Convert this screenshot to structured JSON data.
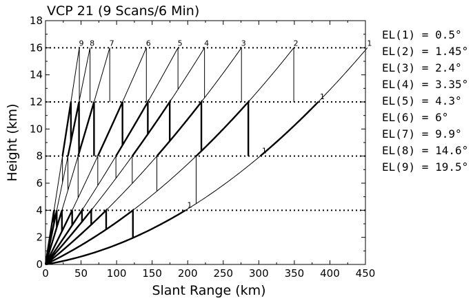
{
  "chart_data": {
    "type": "line",
    "title": "VCP 21 (9 Scans/6 Min)",
    "xlabel": "Slant Range (km)",
    "ylabel": "Height (km)",
    "xlim": [
      0,
      450
    ],
    "ylim": [
      0,
      18
    ],
    "xticks": [
      "0",
      "50",
      "100",
      "150",
      "200",
      "250",
      "300",
      "350",
      "400",
      "450"
    ],
    "yticks": [
      "0",
      "2",
      "4",
      "6",
      "8",
      "10",
      "12",
      "14",
      "16",
      "18"
    ],
    "reference_lines_km": [
      4,
      8,
      12,
      16
    ],
    "grid": "dotted horizontal lines at 4, 8, 12, 16 km",
    "legend_placement": "right",
    "legend": [
      "EL(1) = 0.5°",
      "EL(2) = 1.45°",
      "EL(3) = 2.4°",
      "EL(4) = 3.35°",
      "EL(5) = 4.3°",
      "EL(6) = 6°",
      "EL(7) = 9.9°",
      "EL(8) = 14.6°",
      "EL(9) = 19.5°"
    ],
    "series": [
      {
        "label": "1",
        "elevation_deg": 0.5
      },
      {
        "label": "2",
        "elevation_deg": 1.45
      },
      {
        "label": "3",
        "elevation_deg": 2.4
      },
      {
        "label": "4",
        "elevation_deg": 3.35
      },
      {
        "label": "5",
        "elevation_deg": 4.3
      },
      {
        "label": "6",
        "elevation_deg": 6
      },
      {
        "label": "7",
        "elevation_deg": 9.9
      },
      {
        "label": "8",
        "elevation_deg": 14.6
      },
      {
        "label": "9",
        "elevation_deg": 19.5
      }
    ],
    "annotation_label": "1",
    "colors": {
      "line": "#000000",
      "background": "#ffffff"
    }
  }
}
